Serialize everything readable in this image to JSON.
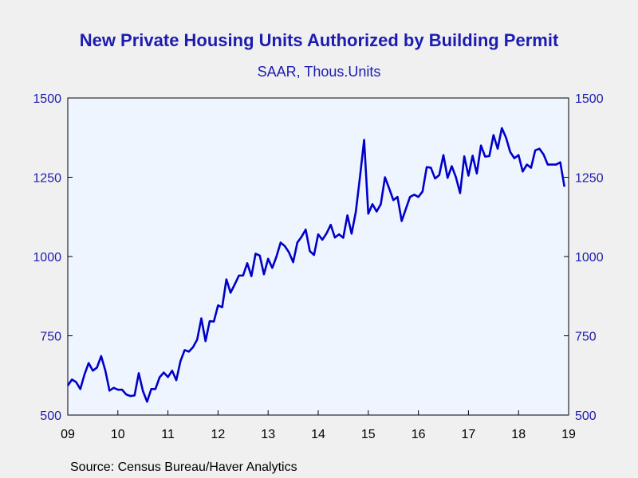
{
  "chart_data": {
    "type": "line",
    "title": "New Private Housing Units Authorized by Building Permit",
    "subtitle": "SAAR, Thous.Units",
    "source": "Source:  Census Bureau/Haver Analytics",
    "xlabel": "",
    "ylabel": "",
    "x_tick_labels": [
      "09",
      "10",
      "11",
      "12",
      "13",
      "14",
      "15",
      "16",
      "17",
      "18",
      "19"
    ],
    "y_ticks": [
      500,
      750,
      1000,
      1250,
      1500
    ],
    "ylim": [
      500,
      1500
    ],
    "x_range_years": [
      2009,
      2019
    ],
    "grid": false,
    "legend": "none",
    "colors": {
      "line": "#0000c8",
      "axis": "#000000",
      "plot_bg": "#eef5ff",
      "text": "#1c1cb0"
    },
    "series": [
      {
        "start": "2009-01",
        "values": [
          593,
          612,
          604,
          582,
          628,
          664,
          640,
          650,
          686,
          640,
          577,
          586,
          580,
          580,
          565,
          560,
          562,
          632,
          576,
          542,
          582,
          582,
          619,
          634,
          620,
          640,
          610,
          670,
          705,
          700,
          714,
          738,
          805,
          733,
          796,
          795,
          846,
          840,
          928,
          886,
          912,
          940,
          940,
          979,
          938,
          1009,
          1003,
          944,
          993,
          964,
          1000,
          1044,
          1033,
          1013,
          982,
          1044,
          1062,
          1085,
          1017,
          1005,
          1070,
          1053,
          1073,
          1100,
          1060,
          1070,
          1059,
          1130,
          1072,
          1140,
          1250,
          1368,
          1135,
          1165,
          1142,
          1165,
          1250,
          1215,
          1178,
          1188,
          1112,
          1150,
          1188,
          1195,
          1188,
          1205,
          1282,
          1280,
          1246,
          1257,
          1320,
          1248,
          1285,
          1250,
          1200,
          1316,
          1255,
          1318,
          1262,
          1350,
          1315,
          1317,
          1383,
          1340,
          1405,
          1375,
          1330,
          1310,
          1320,
          1268,
          1290,
          1280,
          1335,
          1340,
          1322,
          1290,
          1290,
          1290,
          1297,
          1220
        ]
      }
    ]
  }
}
